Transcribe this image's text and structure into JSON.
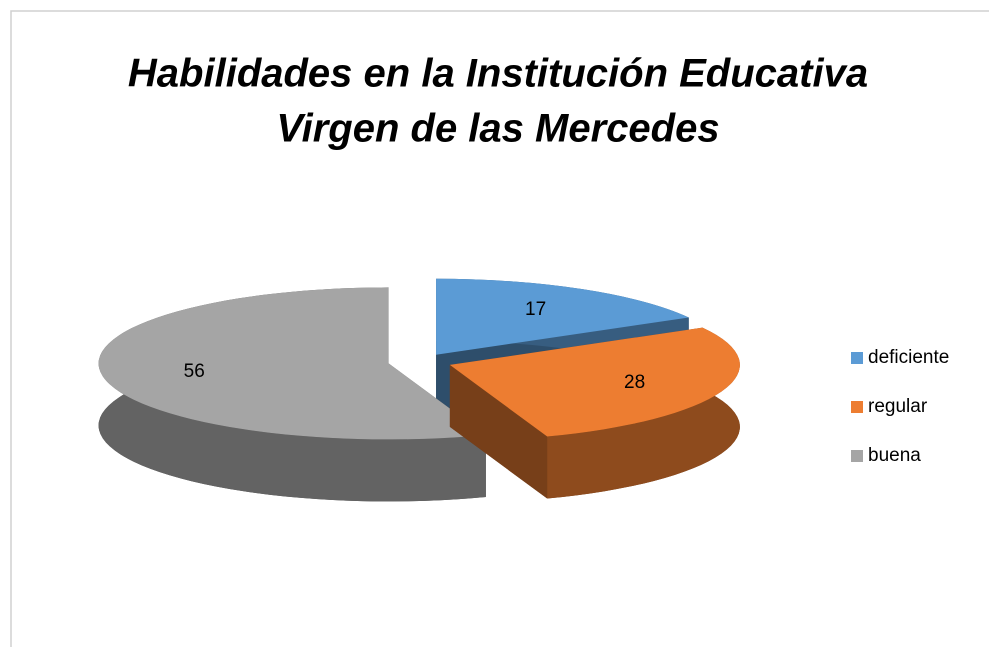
{
  "chart_data": {
    "type": "pie3d",
    "title": [
      "Habilidades en la Institución Educativa",
      "Virgen de las Mercedes"
    ],
    "categories": [
      "deficiente",
      "regular",
      "buena"
    ],
    "values": [
      17,
      28,
      56
    ],
    "colors": [
      "#5b9bd5",
      "#ed7d31",
      "#a5a5a5"
    ],
    "legend": "right"
  }
}
